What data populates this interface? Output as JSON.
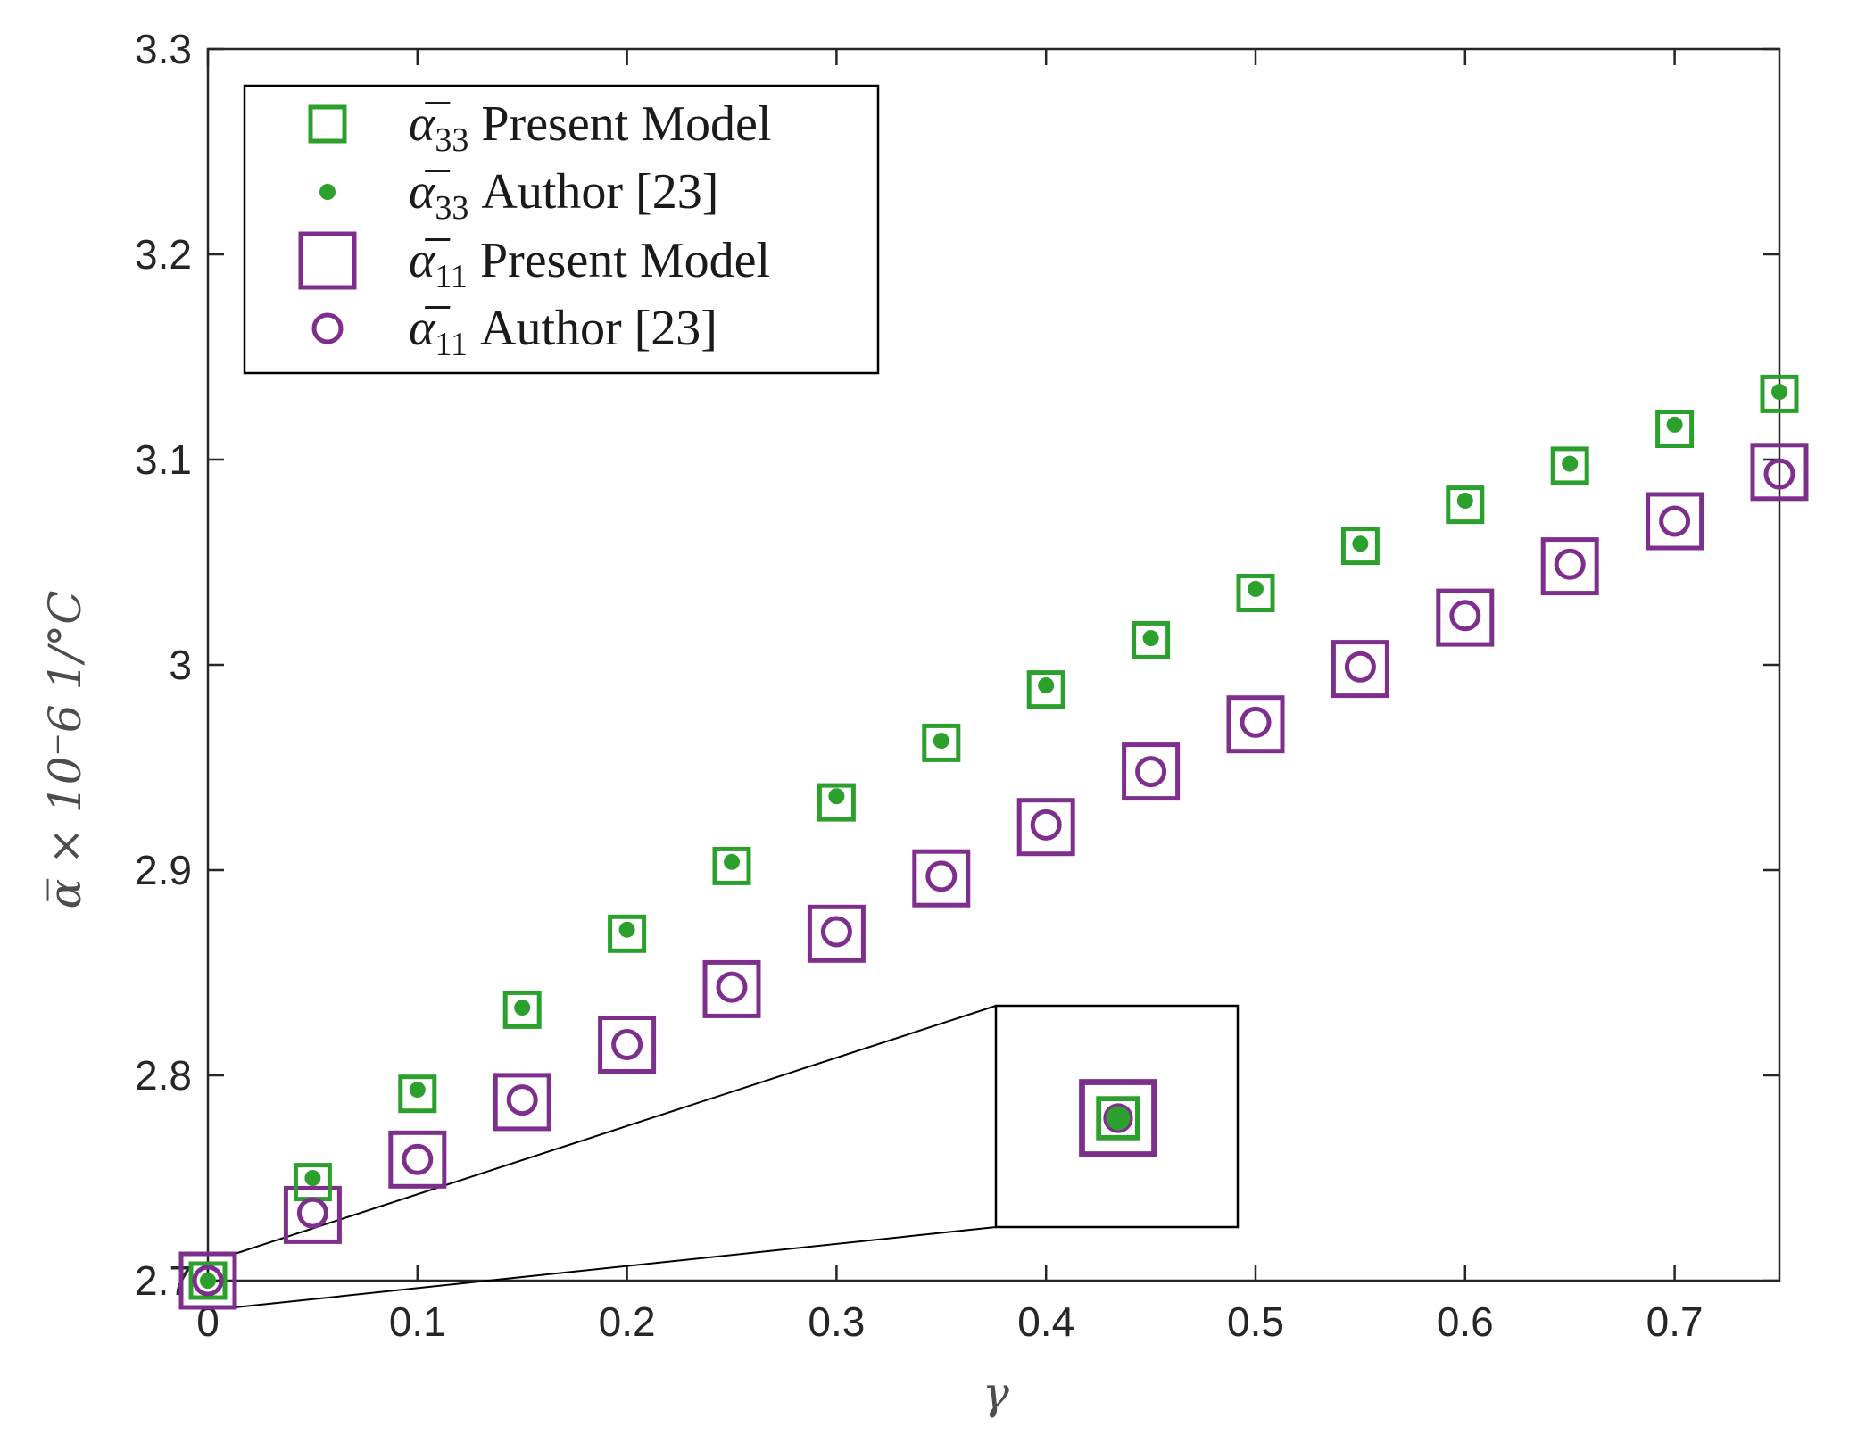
{
  "chart_data": {
    "type": "scatter",
    "title": "",
    "xlabel": "γ",
    "ylabel": "α̅ × 10⁻6   1/°C",
    "xlim": [
      0,
      0.75
    ],
    "ylim": [
      2.7,
      3.3
    ],
    "x_ticks": [
      "0",
      "0.1",
      "0.2",
      "0.3",
      "0.4",
      "0.5",
      "0.6",
      "0.7"
    ],
    "y_ticks": [
      "2.7",
      "2.8",
      "2.9",
      "3",
      "3.1",
      "3.2",
      "3.3"
    ],
    "grid": false,
    "legend_position": "top-left",
    "x": [
      0,
      0.05,
      0.1,
      0.15,
      0.2,
      0.25,
      0.3,
      0.35,
      0.4,
      0.45,
      0.5,
      0.55,
      0.6,
      0.65,
      0.7,
      0.75
    ],
    "series": [
      {
        "name": "α̅33 Present Model",
        "symbol": "α̅",
        "subscript": "33",
        "label": "Present Model",
        "marker": "square-small",
        "color": "#2ca02c",
        "values": [
          2.7,
          2.748,
          2.791,
          2.832,
          2.869,
          2.902,
          2.933,
          2.962,
          2.988,
          3.012,
          3.035,
          3.058,
          3.078,
          3.097,
          3.115,
          3.132
        ]
      },
      {
        "name": "α̅33 Author [23]",
        "symbol": "α̅",
        "subscript": "33",
        "label": "Author [23]",
        "marker": "dot",
        "color": "#2ca02c",
        "values": [
          2.7,
          2.75,
          2.793,
          2.833,
          2.871,
          2.904,
          2.936,
          2.963,
          2.99,
          3.013,
          3.037,
          3.059,
          3.08,
          3.098,
          3.117,
          3.133
        ]
      },
      {
        "name": "α̅11 Present Model",
        "symbol": "α̅",
        "subscript": "11",
        "label": "Present Model",
        "marker": "square-large",
        "color": "#7e2f8e",
        "values": [
          2.7,
          2.732,
          2.759,
          2.787,
          2.815,
          2.842,
          2.869,
          2.896,
          2.921,
          2.948,
          2.971,
          2.998,
          3.023,
          3.048,
          3.07,
          3.094
        ]
      },
      {
        "name": "α̅11 Author [23]",
        "symbol": "α̅",
        "subscript": "11",
        "label": "Author [23]",
        "marker": "circle",
        "color": "#7e2f8e",
        "values": [
          2.7,
          2.733,
          2.759,
          2.788,
          2.815,
          2.843,
          2.87,
          2.897,
          2.922,
          2.948,
          2.972,
          2.999,
          3.024,
          3.049,
          3.07,
          3.093
        ]
      }
    ],
    "inset": {
      "description_point": 0,
      "content": "zoom of γ = 0 point"
    }
  }
}
